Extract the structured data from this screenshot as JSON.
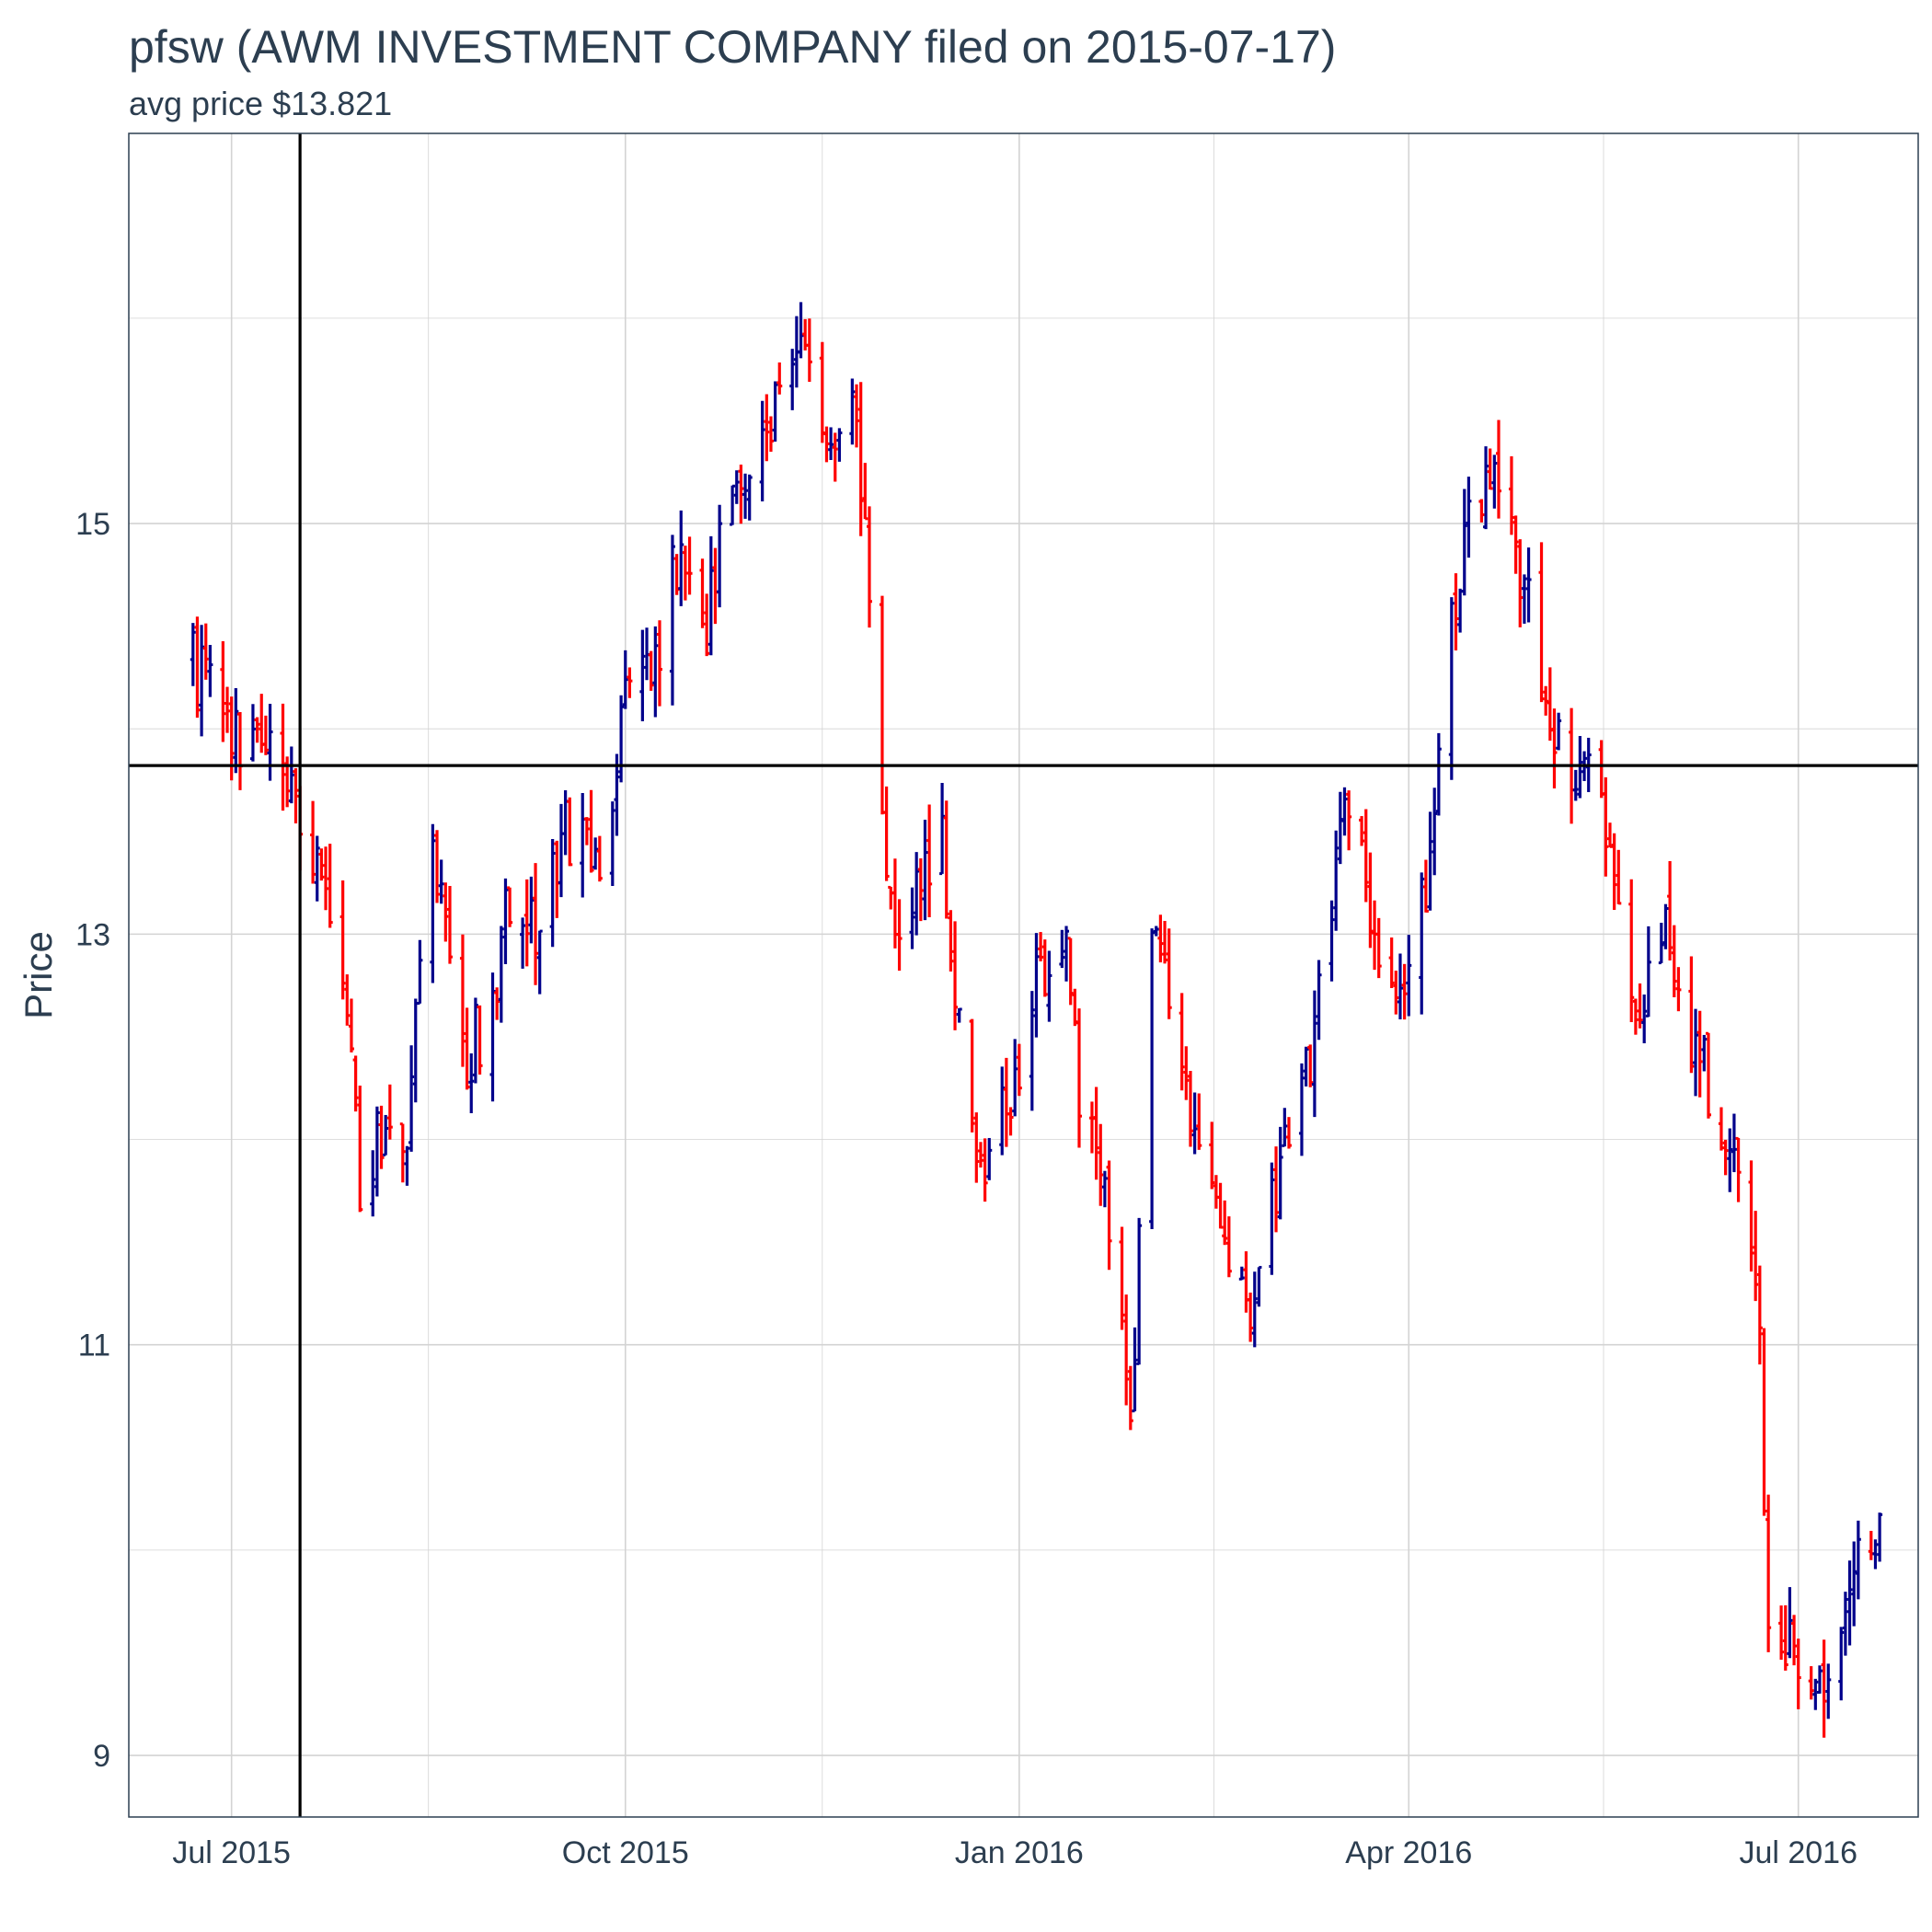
{
  "chart_data": {
    "type": "ohlc",
    "title": "pfsw (AWM INVESTMENT COMPANY filed on 2015-07-17)",
    "subtitle": "avg price $13.821",
    "xlabel": "",
    "ylabel": "Price",
    "x_ticks": [
      {
        "date": "2015-07-01",
        "label": "Jul 2015"
      },
      {
        "date": "2015-10-01",
        "label": "Oct 2015"
      },
      {
        "date": "2016-01-01",
        "label": "Jan 2016"
      },
      {
        "date": "2016-04-01",
        "label": "Apr 2016"
      },
      {
        "date": "2016-07-01",
        "label": "Jul 2016"
      }
    ],
    "y_ticks": [
      9,
      11,
      13,
      15
    ],
    "xlim": [
      "2015-06-07",
      "2016-07-29"
    ],
    "ylim": [
      8.7,
      16.9
    ],
    "grid": true,
    "filing_date": "2015-07-17",
    "avg_price": 13.821,
    "colors": {
      "up": "#00008b",
      "down": "#ff0000",
      "reference": "#000000",
      "grid": "#d3d3d3",
      "panel_border": "#2c3e50"
    },
    "price_path": [
      [
        "2015-06-22",
        14.3
      ],
      [
        "2015-06-30",
        14.0
      ],
      [
        "2015-07-08",
        13.9
      ],
      [
        "2015-07-15",
        13.7
      ],
      [
        "2015-07-22",
        13.3
      ],
      [
        "2015-07-28",
        12.6
      ],
      [
        "2015-07-31",
        11.8
      ],
      [
        "2015-08-05",
        12.0
      ],
      [
        "2015-08-10",
        11.9
      ],
      [
        "2015-08-17",
        13.5
      ],
      [
        "2015-08-24",
        12.4
      ],
      [
        "2015-08-31",
        12.6
      ],
      [
        "2015-09-04",
        13.2
      ],
      [
        "2015-09-10",
        13.0
      ],
      [
        "2015-09-16",
        13.5
      ],
      [
        "2015-09-22",
        13.5
      ],
      [
        "2015-09-25",
        13.2
      ],
      [
        "2015-09-30",
        14.1
      ],
      [
        "2015-10-06",
        14.2
      ],
      [
        "2015-10-13",
        14.8
      ],
      [
        "2015-10-20",
        14.5
      ],
      [
        "2015-10-27",
        15.3
      ],
      [
        "2015-11-03",
        15.4
      ],
      [
        "2015-11-10",
        16.0
      ],
      [
        "2015-11-16",
        15.4
      ],
      [
        "2015-11-24",
        15.6
      ],
      [
        "2015-11-27",
        14.5
      ],
      [
        "2015-11-30",
        13.6
      ],
      [
        "2015-12-03",
        12.9
      ],
      [
        "2015-12-10",
        13.3
      ],
      [
        "2015-12-14",
        13.5
      ],
      [
        "2015-12-17",
        12.8
      ],
      [
        "2015-12-23",
        11.8
      ],
      [
        "2015-12-29",
        12.2
      ],
      [
        "2016-01-06",
        12.8
      ],
      [
        "2016-01-12",
        12.9
      ],
      [
        "2016-01-15",
        12.2
      ],
      [
        "2016-01-21",
        11.8
      ],
      [
        "2016-01-27",
        10.6
      ],
      [
        "2016-02-01",
        13.0
      ],
      [
        "2016-02-05",
        12.6
      ],
      [
        "2016-02-11",
        11.9
      ],
      [
        "2016-02-19",
        11.5
      ],
      [
        "2016-02-25",
        11.1
      ],
      [
        "2016-03-01",
        11.8
      ],
      [
        "2016-03-08",
        12.3
      ],
      [
        "2016-03-15",
        13.3
      ],
      [
        "2016-03-18",
        13.6
      ],
      [
        "2016-03-22",
        13.3
      ],
      [
        "2016-03-28",
        12.6
      ],
      [
        "2016-04-01",
        12.8
      ],
      [
        "2016-04-05",
        13.2
      ],
      [
        "2016-04-11",
        14.5
      ],
      [
        "2016-04-15",
        15.1
      ],
      [
        "2016-04-20",
        15.2
      ],
      [
        "2016-04-27",
        14.8
      ],
      [
        "2016-05-02",
        14.2
      ],
      [
        "2016-05-09",
        13.7
      ],
      [
        "2016-05-13",
        13.9
      ],
      [
        "2016-05-18",
        13.3
      ],
      [
        "2016-05-24",
        12.6
      ],
      [
        "2016-05-31",
        13.0
      ],
      [
        "2016-06-06",
        12.5
      ],
      [
        "2016-06-13",
        12.1
      ],
      [
        "2016-06-17",
        11.7
      ],
      [
        "2016-06-22",
        11.0
      ],
      [
        "2016-06-24",
        9.7
      ],
      [
        "2016-06-29",
        9.5
      ],
      [
        "2016-07-05",
        9.3
      ],
      [
        "2016-07-11",
        9.6
      ],
      [
        "2016-07-15",
        9.9
      ],
      [
        "2016-07-20",
        10.1
      ]
    ]
  }
}
